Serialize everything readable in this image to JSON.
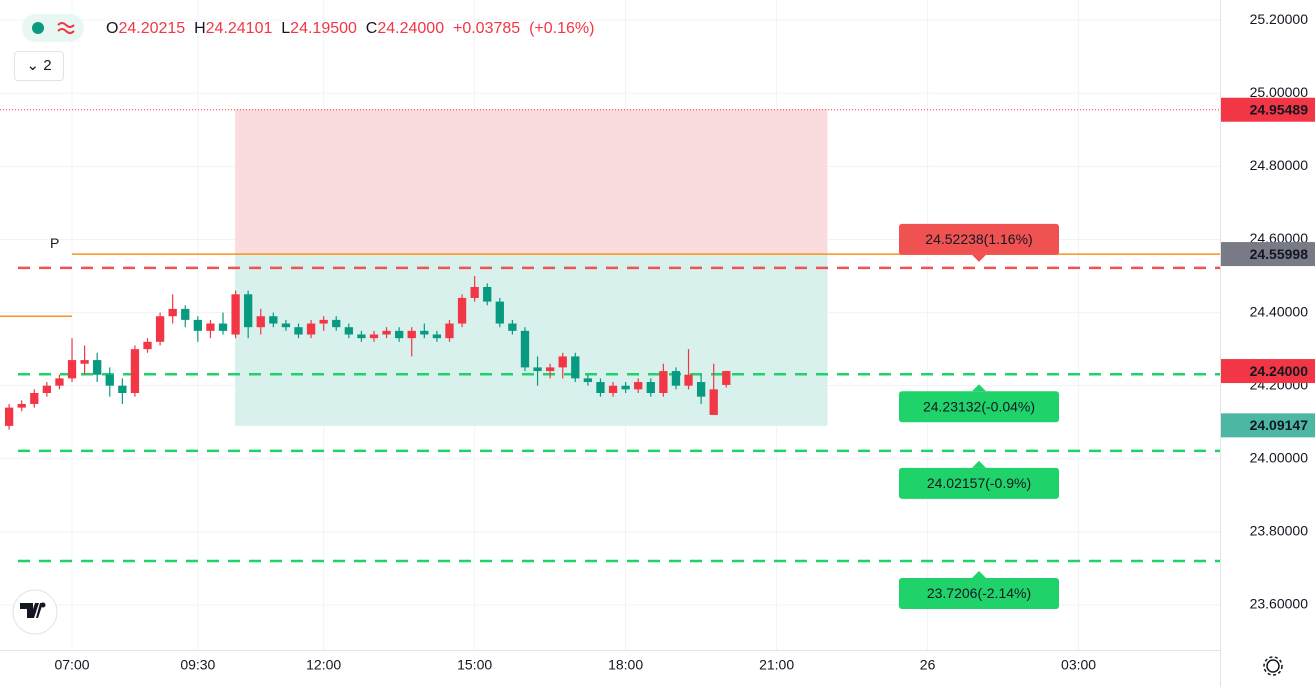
{
  "header": {
    "open_label": "O",
    "open": "24.20215",
    "high_label": "H",
    "high": "24.24101",
    "low_label": "L",
    "low": "24.19500",
    "close_label": "C",
    "close": "24.24000",
    "change": "+0.03785",
    "change_pct": "(+0.16%)"
  },
  "indicator_button": "2",
  "chart_data": {
    "type": "candlestick",
    "up_color": "#f23645",
    "down_color": "#089981",
    "x": [
      5.75,
      6,
      6.25,
      6.5,
      6.75,
      7,
      7.25,
      7.5,
      7.75,
      8,
      8.25,
      8.5,
      8.75,
      9,
      9.25,
      9.5,
      9.75,
      10,
      10.25,
      10.5,
      10.75,
      11,
      11.25,
      11.5,
      11.75,
      12,
      12.25,
      12.5,
      12.75,
      13,
      13.25,
      13.5,
      13.75,
      14,
      14.25,
      14.5,
      14.75,
      15,
      15.25,
      15.5,
      15.75,
      16,
      16.25,
      16.5,
      16.75,
      17,
      17.25,
      17.5,
      17.75,
      18,
      18.25,
      18.5,
      18.75,
      19,
      19.25,
      19.5,
      19.75,
      20
    ],
    "open": [
      24.09,
      24.14,
      24.15,
      24.18,
      24.2,
      24.22,
      24.26,
      24.27,
      24.23,
      24.2,
      24.18,
      24.3,
      24.32,
      24.39,
      24.41,
      24.38,
      24.35,
      24.37,
      24.34,
      24.45,
      24.36,
      24.39,
      24.37,
      24.36,
      24.34,
      24.37,
      24.38,
      24.36,
      24.34,
      24.33,
      24.34,
      24.35,
      24.33,
      24.35,
      24.34,
      24.33,
      24.37,
      24.44,
      24.47,
      24.43,
      24.37,
      24.35,
      24.25,
      24.24,
      24.25,
      24.28,
      24.22,
      24.21,
      24.18,
      24.2,
      24.19,
      24.21,
      24.18,
      24.24,
      24.2,
      24.21,
      24.12,
      24.20215
    ],
    "high": [
      24.15,
      24.16,
      24.19,
      24.21,
      24.23,
      24.33,
      24.31,
      24.29,
      24.25,
      24.22,
      24.31,
      24.33,
      24.4,
      24.45,
      24.42,
      24.39,
      24.38,
      24.4,
      24.46,
      24.46,
      24.41,
      24.4,
      24.38,
      24.37,
      24.38,
      24.39,
      24.39,
      24.37,
      24.35,
      24.35,
      24.36,
      24.36,
      24.36,
      24.37,
      24.35,
      24.38,
      24.45,
      24.5,
      24.48,
      24.44,
      24.38,
      24.36,
      24.28,
      24.26,
      24.29,
      24.29,
      24.23,
      24.22,
      24.21,
      24.21,
      24.22,
      24.22,
      24.26,
      24.25,
      24.3,
      24.23,
      24.26,
      24.24101
    ],
    "low": [
      24.08,
      24.13,
      24.14,
      24.17,
      24.19,
      24.21,
      24.23,
      24.21,
      24.17,
      24.15,
      24.17,
      24.29,
      24.31,
      24.37,
      24.36,
      24.32,
      24.33,
      24.34,
      24.33,
      24.33,
      24.34,
      24.36,
      24.35,
      24.33,
      24.33,
      24.35,
      24.35,
      24.33,
      24.32,
      24.32,
      24.33,
      24.32,
      24.28,
      24.33,
      24.32,
      24.32,
      24.36,
      24.43,
      24.42,
      24.36,
      24.34,
      24.24,
      24.2,
      24.22,
      24.22,
      24.21,
      24.2,
      24.17,
      24.17,
      24.18,
      24.18,
      24.17,
      24.17,
      24.19,
      24.19,
      24.15,
      24.12,
      24.195
    ],
    "close": [
      24.14,
      24.15,
      24.18,
      24.2,
      24.22,
      24.27,
      24.27,
      24.23,
      24.2,
      24.18,
      24.3,
      24.32,
      24.39,
      24.41,
      24.38,
      24.35,
      24.37,
      24.35,
      24.45,
      24.36,
      24.39,
      24.37,
      24.36,
      24.34,
      24.37,
      24.38,
      24.36,
      24.34,
      24.33,
      24.34,
      24.35,
      24.33,
      24.35,
      24.34,
      24.33,
      24.37,
      24.44,
      24.47,
      24.43,
      24.37,
      24.35,
      24.25,
      24.24,
      24.25,
      24.28,
      24.22,
      24.21,
      24.18,
      24.2,
      24.19,
      24.21,
      24.18,
      24.24,
      24.2,
      24.23,
      24.17,
      24.19,
      24.24
    ],
    "xlim": [
      5.569,
      29.81
    ],
    "ylim": [
      23.477,
      25.255
    ],
    "xticks": [
      {
        "value": 7,
        "label": "07:00"
      },
      {
        "value": 9.5,
        "label": "09:30"
      },
      {
        "value": 12,
        "label": "12:00"
      },
      {
        "value": 15,
        "label": "15:00"
      },
      {
        "value": 18,
        "label": "18:00"
      },
      {
        "value": 21,
        "label": "21:00"
      },
      {
        "value": 24,
        "label": "26"
      },
      {
        "value": 27,
        "label": "03:00"
      }
    ],
    "yticks": [
      {
        "value": 23.6,
        "label": "23.60000"
      },
      {
        "value": 23.8,
        "label": "23.80000"
      },
      {
        "value": 24,
        "label": "24.00000"
      },
      {
        "value": 24.2,
        "label": "24.20000"
      },
      {
        "value": 24.4,
        "label": "24.40000"
      },
      {
        "value": 24.6,
        "label": "24.60000"
      },
      {
        "value": 24.8,
        "label": "24.80000"
      },
      {
        "value": 25,
        "label": "25.00000"
      },
      {
        "value": 25.2,
        "label": "25.20000"
      }
    ],
    "grid": true,
    "zones": [
      {
        "y": [
          24.55998,
          24.95489
        ],
        "x": [
          10.25,
          22
        ],
        "color": "#fbdcde"
      },
      {
        "y": [
          24.09147,
          24.55998
        ],
        "x": [
          10.25,
          22
        ],
        "color": "#d8f1ec"
      }
    ],
    "pivot_lines": [
      {
        "value": 24.39,
        "x": [
          5.569,
          7
        ],
        "color": "#f7931a"
      },
      {
        "value": 24.55998,
        "x": [
          7,
          29.81
        ],
        "color": "#f7931a",
        "label": "P"
      }
    ],
    "levels": [
      {
        "value": 24.52238,
        "label": "24.52238(1.16%)",
        "color": "#f05252",
        "box": "#f05252",
        "side": "above"
      },
      {
        "value": 24.23132,
        "label": "24.23132(-0.04%)",
        "color": "#1fd36a",
        "box": "#1fd36a",
        "side": "below"
      },
      {
        "value": 24.02157,
        "label": "24.02157(-0.9%)",
        "color": "#1fd36a",
        "box": "#1fd36a",
        "side": "below"
      },
      {
        "value": 23.7206,
        "label": "23.7206(-2.14%)",
        "color": "#1fd36a",
        "box": "#1fd36a",
        "side": "below"
      }
    ],
    "price_labels": [
      {
        "value": 24.95489,
        "label": "24.95489",
        "color": "#f23645"
      },
      {
        "value": 24.55998,
        "label": "24.55998",
        "color": "#787b86"
      },
      {
        "value": 24.24,
        "label": "24.24000",
        "color": "#f23645"
      },
      {
        "value": 24.09147,
        "label": "24.09147",
        "color": "#4cb8a4"
      }
    ]
  }
}
